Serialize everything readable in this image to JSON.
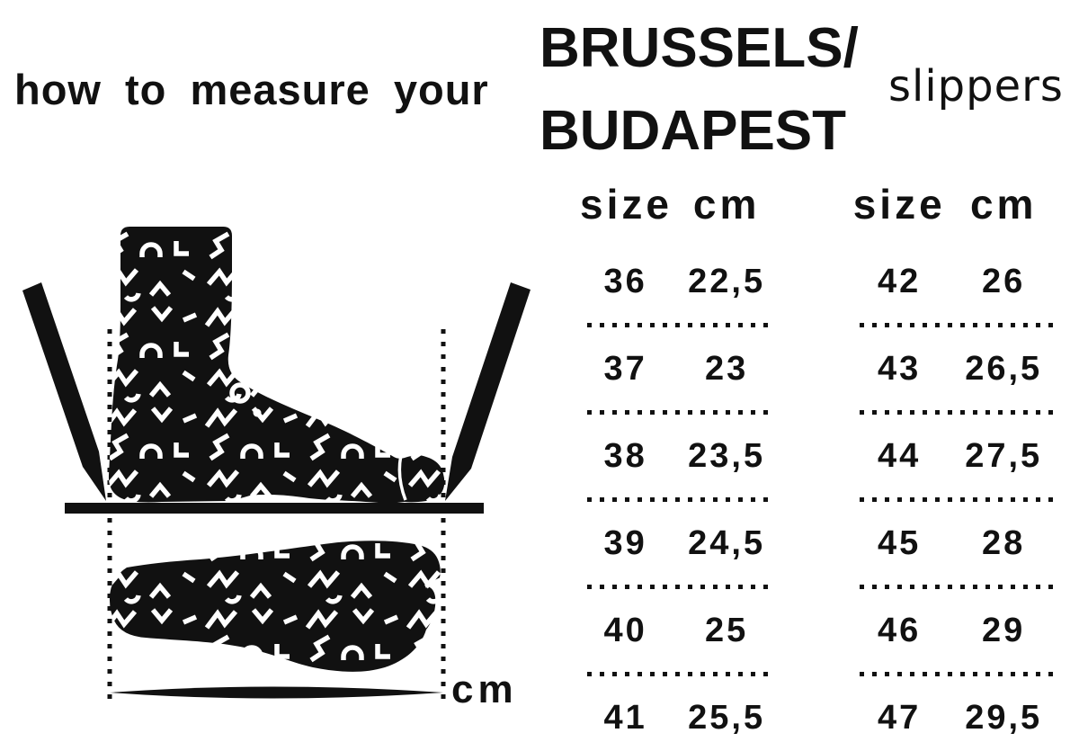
{
  "header": {
    "title": "how to measure your",
    "brand_line1": "BRUSSELS/",
    "brand_line2": "BUDAPEST",
    "product": "slippers"
  },
  "measurement": {
    "unit_label": "cm"
  },
  "size_tables": [
    {
      "columns": {
        "size": "size",
        "cm": "cm"
      },
      "rows": [
        {
          "size": "36",
          "cm": "22,5"
        },
        {
          "size": "37",
          "cm": "23"
        },
        {
          "size": "38",
          "cm": "23,5"
        },
        {
          "size": "39",
          "cm": "24,5"
        },
        {
          "size": "40",
          "cm": "25"
        },
        {
          "size": "41",
          "cm": "25,5"
        }
      ]
    },
    {
      "columns": {
        "size": "size",
        "cm": "cm"
      },
      "rows": [
        {
          "size": "42",
          "cm": "26"
        },
        {
          "size": "43",
          "cm": "26,5"
        },
        {
          "size": "44",
          "cm": "27,5"
        },
        {
          "size": "45",
          "cm": "28"
        },
        {
          "size": "46",
          "cm": "29"
        },
        {
          "size": "47",
          "cm": "29,5"
        }
      ]
    }
  ],
  "colors": {
    "ink": "#111111",
    "background": "#ffffff"
  }
}
